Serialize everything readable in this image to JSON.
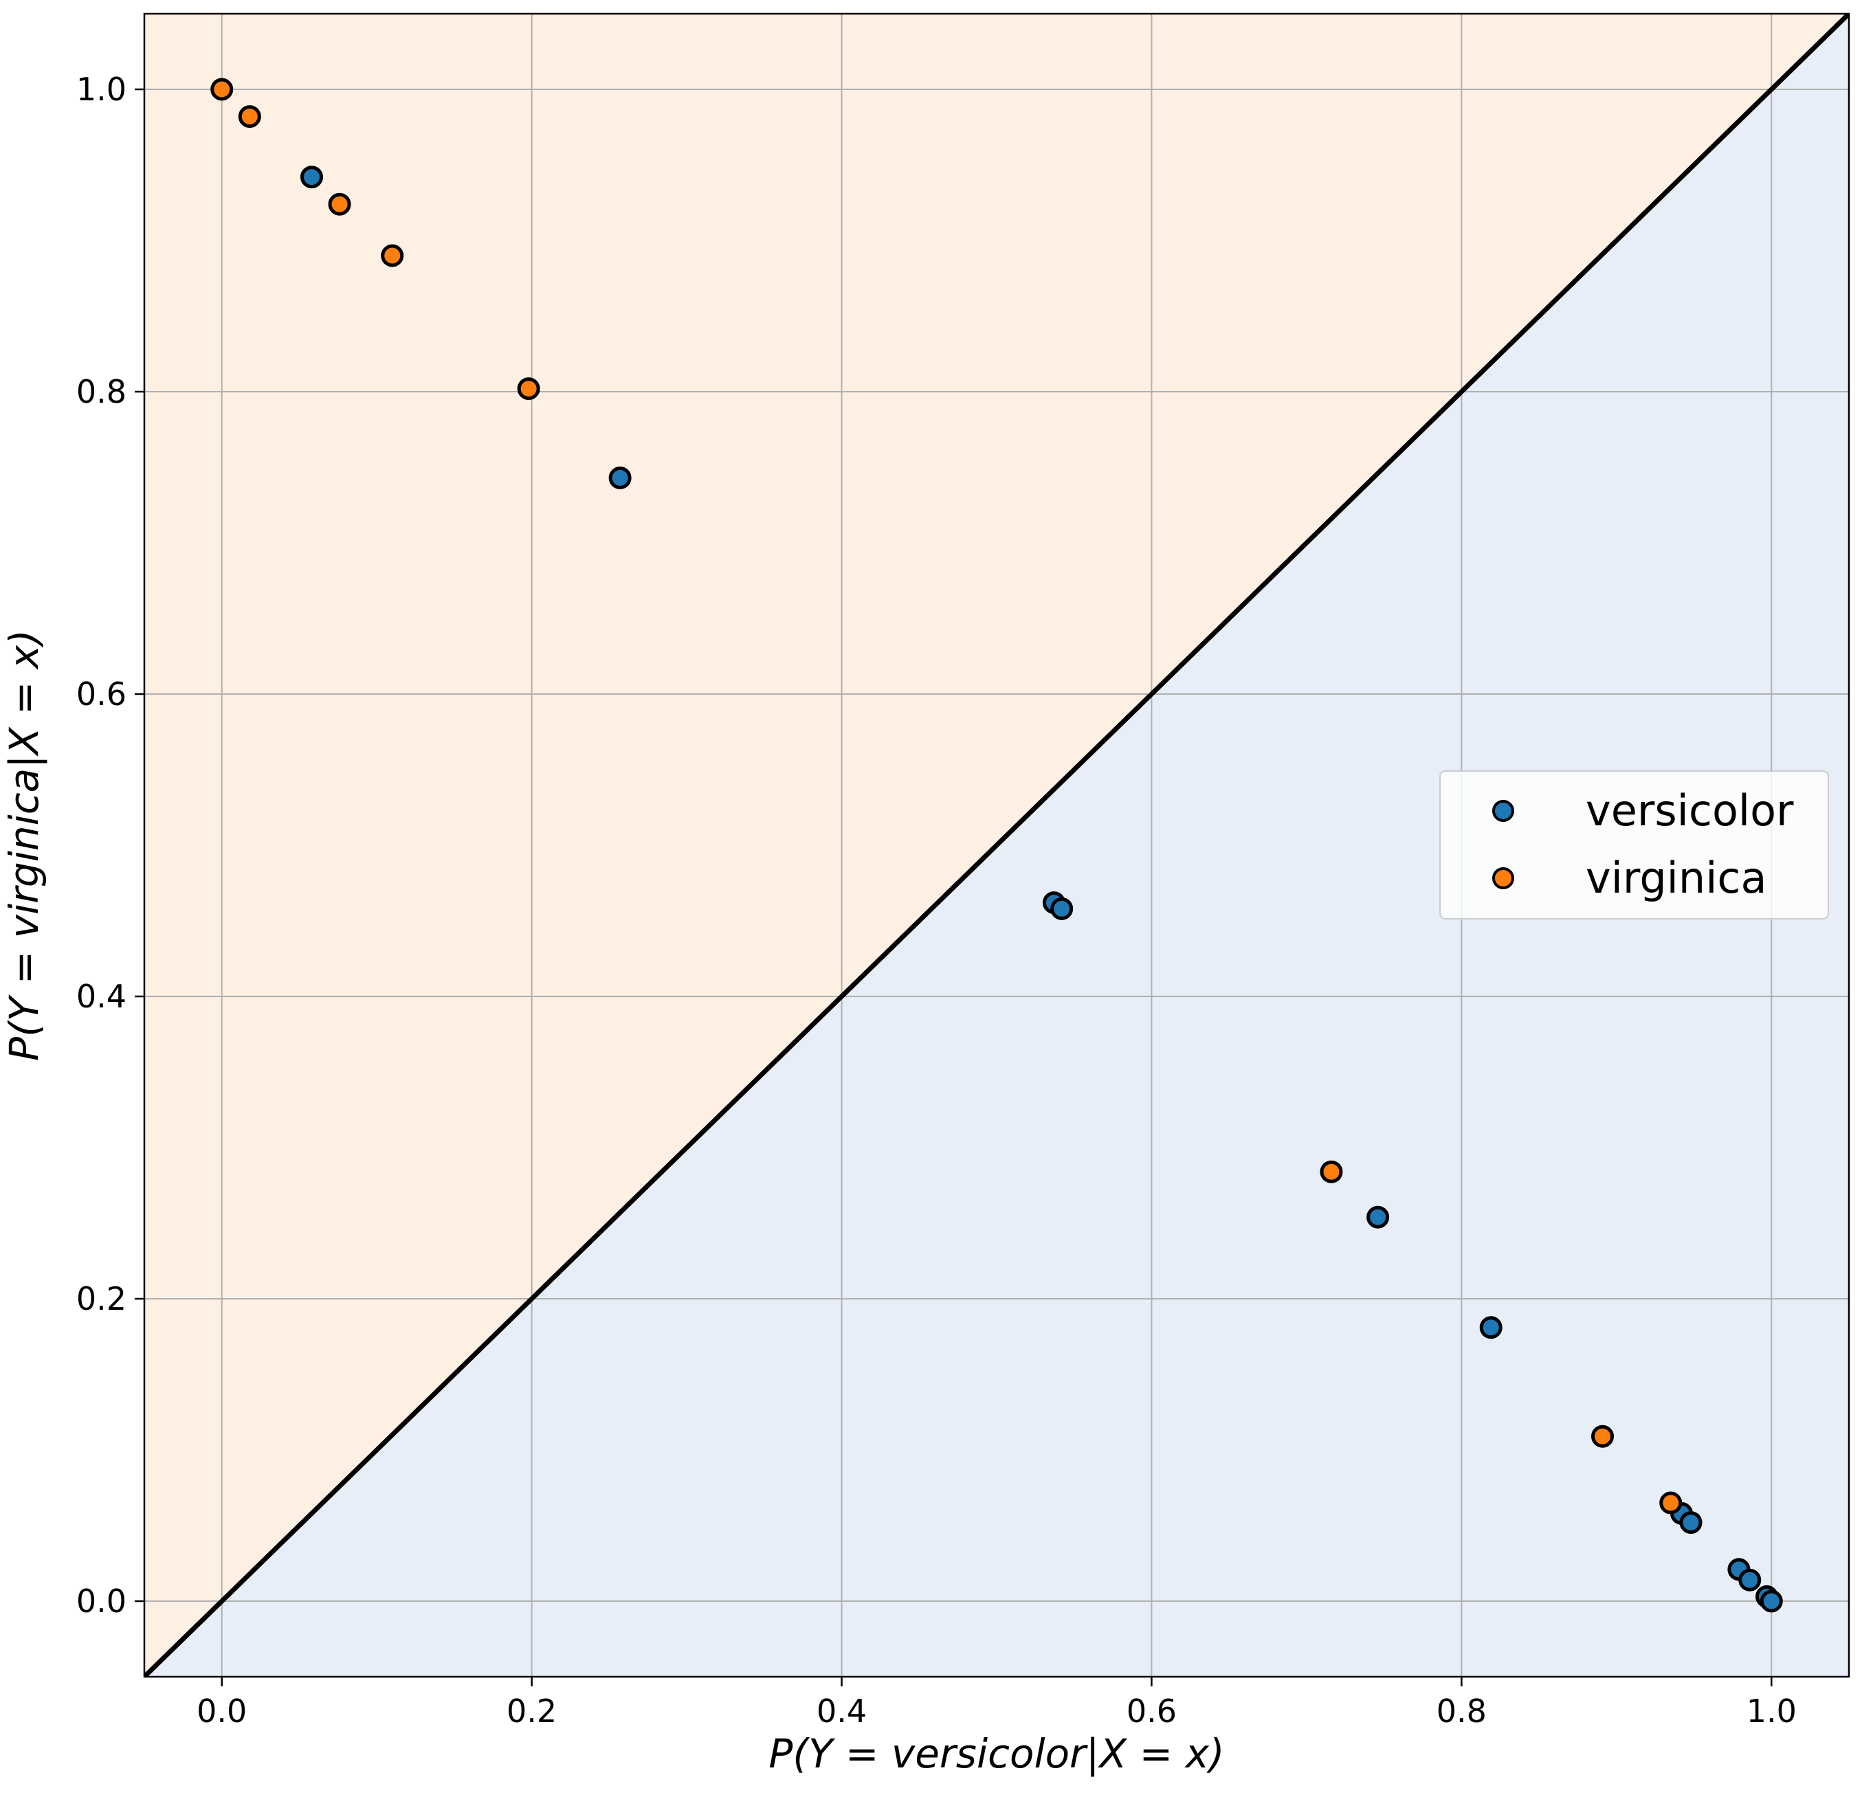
{
  "chart_data": {
    "type": "scatter",
    "title": "",
    "xlabel": "P(Y = versicolor|X = x)",
    "ylabel": "P(Y = virginica|X = x)",
    "xlim": [
      -0.05,
      1.05
    ],
    "ylim": [
      -0.05,
      1.05
    ],
    "xticks": [
      "0.0",
      "0.2",
      "0.4",
      "0.6",
      "0.8",
      "1.0"
    ],
    "yticks": [
      "0.0",
      "0.2",
      "0.4",
      "0.6",
      "0.8",
      "1.0"
    ],
    "grid": true,
    "legend_position": "center-right",
    "decision_boundary": {
      "type": "line",
      "slope": 1,
      "intercept": 0,
      "color": "#000000"
    },
    "regions": [
      {
        "label": "above diagonal",
        "color": "#fff0e4"
      },
      {
        "label": "below diagonal",
        "color": "#e7eef7"
      }
    ],
    "series": [
      {
        "name": "versicolor",
        "color": "#1f77b4",
        "points": [
          [
            0.058,
            0.942
          ],
          [
            0.257,
            0.743
          ],
          [
            0.537,
            0.462
          ],
          [
            0.542,
            0.458
          ],
          [
            0.746,
            0.254
          ],
          [
            0.819,
            0.181
          ],
          [
            0.942,
            0.058
          ],
          [
            0.948,
            0.052
          ],
          [
            0.979,
            0.021
          ],
          [
            0.986,
            0.014
          ],
          [
            0.997,
            0.003
          ],
          [
            1.0,
            0.0
          ]
        ]
      },
      {
        "name": "virginica",
        "color": "#ff7f0e",
        "points": [
          [
            0.0,
            1.0
          ],
          [
            0.018,
            0.982
          ],
          [
            0.076,
            0.924
          ],
          [
            0.11,
            0.89
          ],
          [
            0.198,
            0.802
          ],
          [
            0.716,
            0.284
          ],
          [
            0.891,
            0.109
          ],
          [
            0.935,
            0.065
          ]
        ]
      }
    ]
  }
}
